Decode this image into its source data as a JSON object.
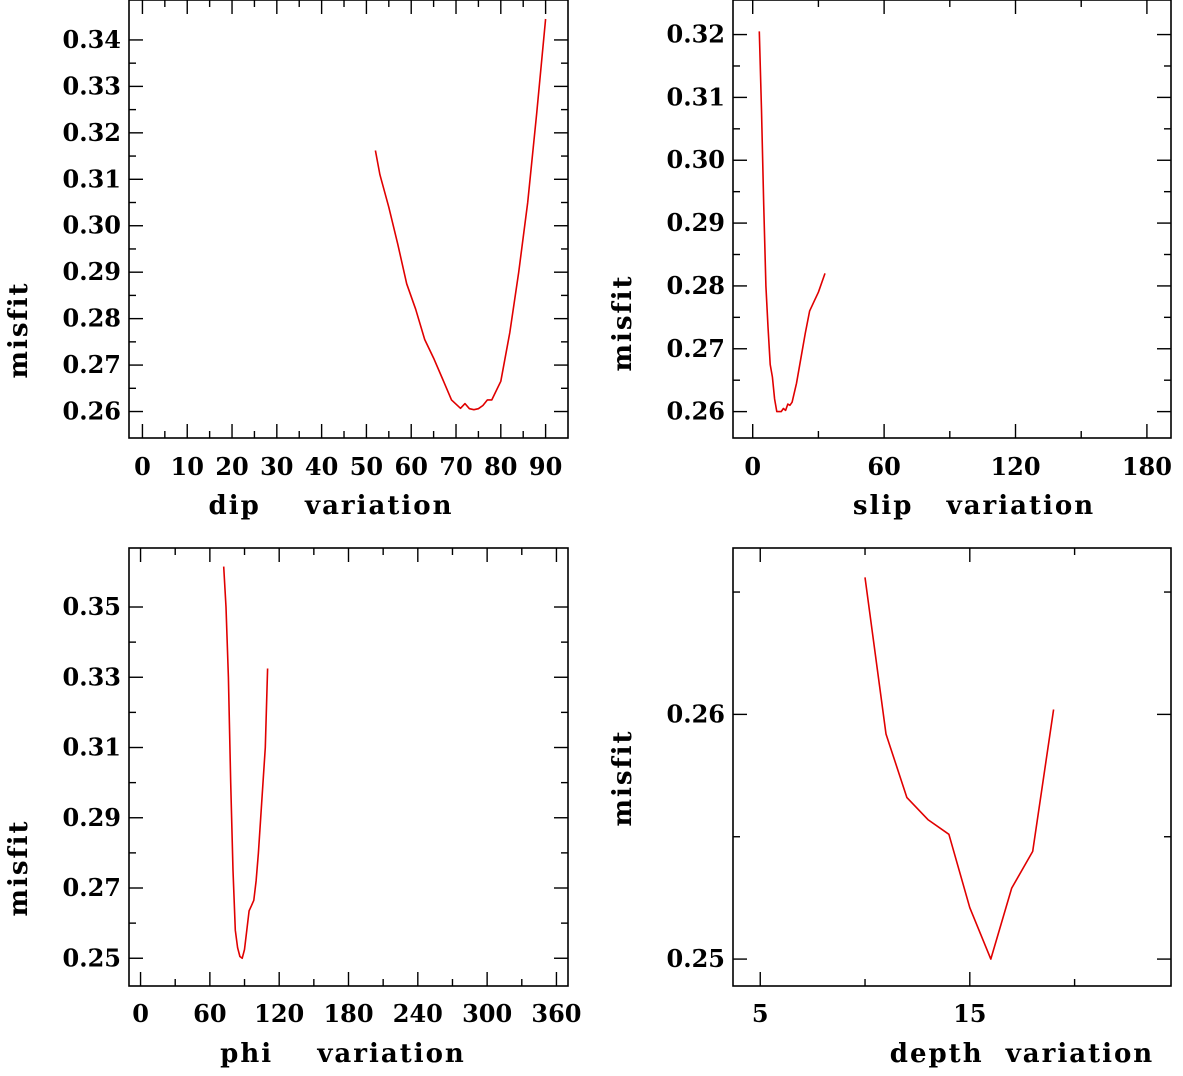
{
  "chart_data": [
    {
      "type": "line",
      "xlabel": "dip    variation",
      "ylabel": "misfit",
      "xlim": [
        -3,
        95
      ],
      "ylim": [
        0.2543,
        0.3486
      ],
      "xticks": [
        0,
        10,
        20,
        30,
        40,
        50,
        60,
        70,
        80,
        90
      ],
      "xticklabels": [
        "0",
        "10",
        "20",
        "30",
        "40",
        "50",
        "60",
        "70",
        "80",
        "90"
      ],
      "xminor": [
        5,
        15,
        25,
        35,
        45,
        55,
        65,
        75,
        85
      ],
      "yticks": [
        0.26,
        0.27,
        0.28,
        0.29,
        0.3,
        0.31,
        0.32,
        0.33,
        0.34
      ],
      "yticklabels": [
        "0.26",
        "0.27",
        "0.28",
        "0.29",
        "0.30",
        "0.31",
        "0.32",
        "0.33",
        "0.34"
      ],
      "x": [
        52,
        53,
        55,
        57,
        59,
        61,
        63,
        65,
        67,
        69,
        71,
        72,
        73,
        74,
        75,
        76,
        77,
        78,
        80,
        82,
        84,
        86,
        88,
        90
      ],
      "y": [
        0.3162,
        0.311,
        0.304,
        0.296,
        0.2875,
        0.282,
        0.2755,
        0.2715,
        0.267,
        0.2625,
        0.2607,
        0.2617,
        0.2606,
        0.2604,
        0.2606,
        0.2613,
        0.2625,
        0.2625,
        0.2665,
        0.277,
        0.29,
        0.305,
        0.324,
        0.3445
      ]
    },
    {
      "type": "line",
      "xlabel": "slip   variation",
      "ylabel": "misfit",
      "xlim": [
        -9,
        191
      ],
      "ylim": [
        0.2558,
        0.3255
      ],
      "xticks": [
        0,
        60,
        120,
        180
      ],
      "xticklabels": [
        "0",
        "60",
        "120",
        "180"
      ],
      "xminor": [
        30,
        90,
        150
      ],
      "yticks": [
        0.26,
        0.27,
        0.28,
        0.29,
        0.3,
        0.31,
        0.32
      ],
      "yticklabels": [
        "0.26",
        "0.27",
        "0.28",
        "0.29",
        "0.30",
        "0.31",
        "0.32"
      ],
      "x": [
        3,
        4,
        5,
        6,
        7,
        8,
        9,
        10,
        11,
        12,
        13,
        14,
        15,
        16,
        17,
        18,
        20,
        22,
        24,
        26,
        28,
        30,
        32,
        33
      ],
      "y": [
        0.3205,
        0.308,
        0.293,
        0.28,
        0.2735,
        0.2675,
        0.2655,
        0.262,
        0.26,
        0.26,
        0.26,
        0.2605,
        0.2602,
        0.2612,
        0.261,
        0.2615,
        0.2645,
        0.2685,
        0.2725,
        0.276,
        0.2775,
        0.279,
        0.281,
        0.282
      ]
    },
    {
      "type": "line",
      "xlabel": "phi    variation",
      "ylabel": "misfit",
      "xlim": [
        -10,
        370
      ],
      "ylim": [
        0.2421,
        0.3668
      ],
      "xticks": [
        0,
        60,
        120,
        180,
        240,
        300,
        360
      ],
      "xticklabels": [
        "0",
        "60",
        "120",
        "180",
        "240",
        "300",
        "360"
      ],
      "xminor": [
        30,
        90,
        150,
        210,
        270,
        330
      ],
      "yticks": [
        0.25,
        0.27,
        0.29,
        0.31,
        0.33,
        0.35
      ],
      "yticklabels": [
        "0.25",
        "0.27",
        "0.29",
        "0.31",
        "0.33",
        "0.35"
      ],
      "x": [
        72,
        74,
        76,
        78,
        80,
        82,
        84,
        86,
        88,
        90,
        92,
        94,
        96,
        98,
        100,
        102,
        104,
        106,
        108,
        110
      ],
      "y": [
        0.3615,
        0.35,
        0.33,
        0.3,
        0.275,
        0.258,
        0.253,
        0.2505,
        0.25,
        0.2525,
        0.258,
        0.2635,
        0.265,
        0.2665,
        0.272,
        0.28,
        0.29,
        0.3,
        0.31,
        0.3325
      ]
    },
    {
      "type": "line",
      "xlabel": "depth  variation",
      "ylabel": "misfit",
      "xlim": [
        3.7,
        24.6
      ],
      "ylim": [
        0.2489,
        0.2668
      ],
      "xticks": [
        5,
        15
      ],
      "xticklabels": [
        "5",
        "15"
      ],
      "xminor": [
        10,
        20
      ],
      "yticks": [
        0.25,
        0.26
      ],
      "yticklabels": [
        "0.25",
        "0.26"
      ],
      "yminor": [
        0.255,
        0.265
      ],
      "x": [
        10,
        11,
        12,
        13,
        14,
        15,
        16,
        17,
        18,
        19
      ],
      "y": [
        0.2656,
        0.2592,
        0.2566,
        0.2557,
        0.2551,
        0.2521,
        0.25,
        0.2529,
        0.2544,
        0.2602
      ]
    }
  ]
}
